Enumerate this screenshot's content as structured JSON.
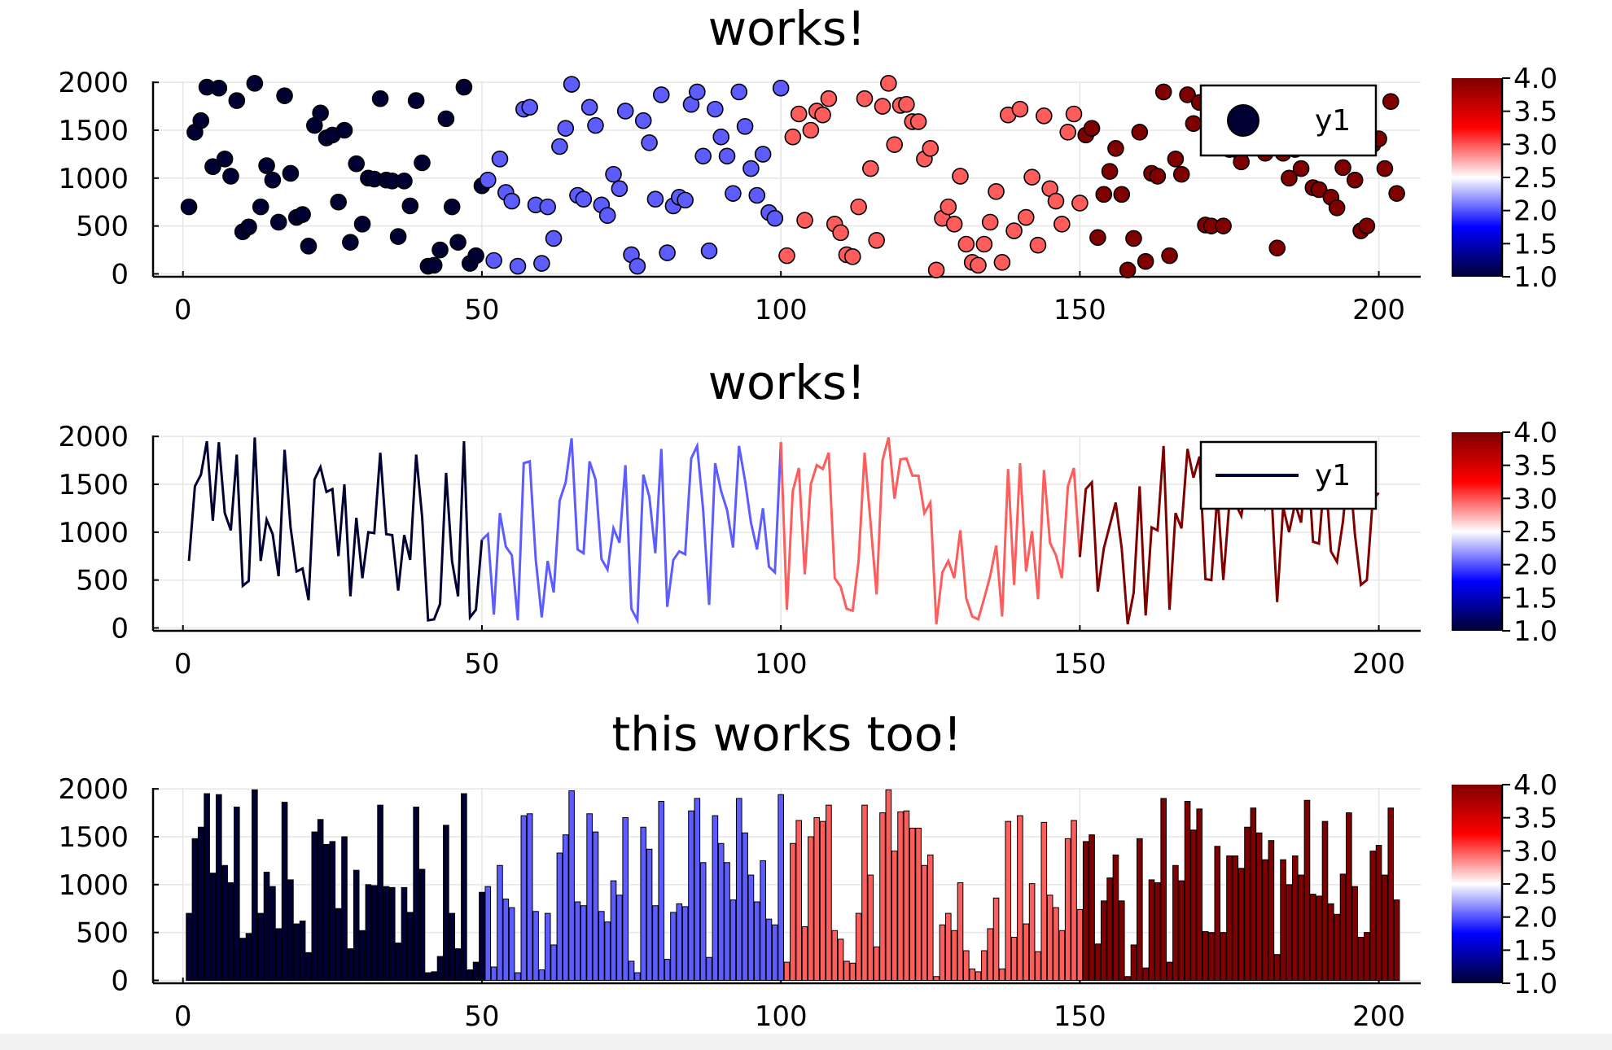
{
  "figure": {
    "colorbar_ticks": [
      "1.0",
      "1.5",
      "2.0",
      "2.5",
      "3.0",
      "3.5",
      "4.0"
    ],
    "colorbar_range": [
      1.0,
      4.0
    ],
    "colormap": [
      "#000033",
      "#0000ff",
      "#ffffff",
      "#ff0000",
      "#800000"
    ]
  },
  "chart_data": [
    {
      "type": "scatter",
      "title": "works!",
      "xlim": [
        -5,
        207
      ],
      "ylim": [
        -30,
        2010
      ],
      "xticks": [
        "0",
        "50",
        "100",
        "150",
        "200"
      ],
      "yticks": [
        "0",
        "500",
        "1000",
        "1500",
        "2000"
      ],
      "grid": true,
      "legend": {
        "placement": "top-right",
        "entries": [
          "y1"
        ]
      },
      "group_colors": [
        "#000033",
        "#5c5cff",
        "#ff5c5c",
        "#800000"
      ],
      "series": [
        {
          "name": "y1",
          "x": "1..200",
          "y": "see shared_y",
          "color_by": "group of 50 points (1,2,3,4)"
        }
      ]
    },
    {
      "type": "line",
      "title": "works!",
      "xlim": [
        -5,
        207
      ],
      "ylim": [
        -30,
        2010
      ],
      "xticks": [
        "0",
        "50",
        "100",
        "150",
        "200"
      ],
      "yticks": [
        "0",
        "500",
        "1000",
        "1500",
        "2000"
      ],
      "grid": true,
      "legend": {
        "placement": "top-right",
        "entries": [
          "y1"
        ]
      }
    },
    {
      "type": "bar",
      "title": "this works too!",
      "xlim": [
        -5,
        207
      ],
      "ylim": [
        -30,
        2010
      ],
      "xticks": [
        "0",
        "50",
        "100",
        "150",
        "200"
      ],
      "yticks": [
        "0",
        "500",
        "1000",
        "1500",
        "2000"
      ],
      "grid": true
    }
  ],
  "shared_y": [
    700,
    1480,
    1600,
    1950,
    1120,
    1940,
    1200,
    1020,
    1810,
    440,
    490,
    1990,
    700,
    1130,
    980,
    540,
    1860,
    1050,
    590,
    620,
    290,
    1550,
    1680,
    1420,
    1450,
    750,
    1500,
    330,
    1150,
    520,
    1000,
    990,
    1830,
    980,
    970,
    390,
    970,
    710,
    1810,
    1160,
    80,
    90,
    250,
    1620,
    700,
    330,
    1950,
    110,
    190,
    920,
    980,
    140,
    1200,
    850,
    760,
    80,
    1720,
    1740,
    720,
    110,
    700,
    370,
    1330,
    1520,
    1980,
    820,
    780,
    1740,
    1550,
    720,
    610,
    1040,
    890,
    1700,
    200,
    80,
    1600,
    1370,
    780,
    1870,
    220,
    710,
    800,
    770,
    1770,
    1900,
    1230,
    240,
    1720,
    1430,
    1230,
    840,
    1900,
    1540,
    1100,
    820,
    1250,
    640,
    580,
    1940,
    190,
    1430,
    1670,
    560,
    1500,
    1700,
    1660,
    1830,
    520,
    430,
    200,
    180,
    700,
    1830,
    1100,
    350,
    1750,
    1990,
    1350,
    1760,
    1770,
    1590,
    1590,
    1200,
    1310,
    40,
    580,
    700,
    520,
    1020,
    310,
    120,
    90,
    310,
    540,
    860,
    120,
    1660,
    450,
    1720,
    590,
    1010,
    300,
    1650,
    890,
    760,
    520,
    1480,
    1670,
    740,
    1450,
    1520,
    380,
    830,
    1070,
    1310,
    830,
    40,
    370,
    1480,
    130,
    1050,
    1020,
    1900,
    190,
    1200,
    1040,
    1870,
    1570,
    1790,
    510,
    500,
    1400,
    500,
    1300,
    1300,
    1170,
    1600,
    1800,
    1540,
    1260,
    1460,
    270,
    1260,
    1000,
    1300,
    1100,
    1880,
    900,
    880,
    1660,
    800,
    690,
    1110,
    1750,
    980,
    450,
    500,
    1350,
    1410,
    1100,
    1800,
    840
  ]
}
